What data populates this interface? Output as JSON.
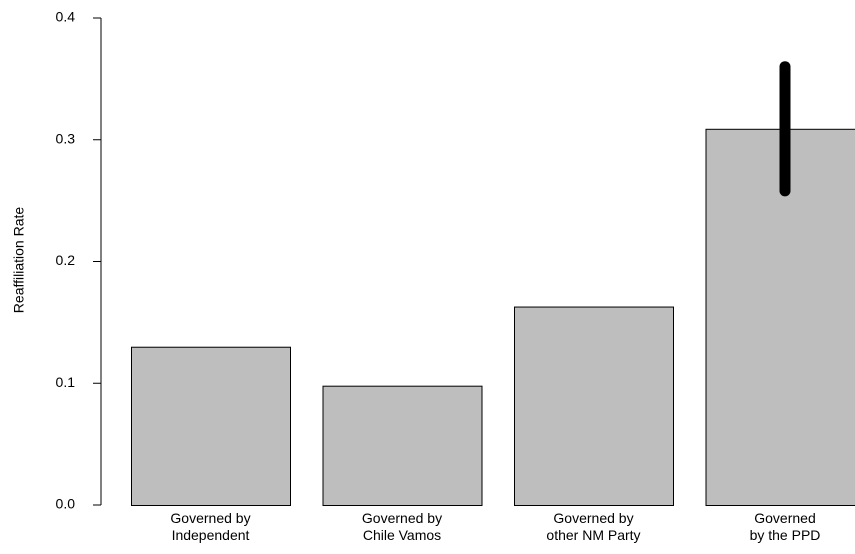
{
  "chart_data": {
    "type": "bar",
    "y_label": "Reaffiliation Rate",
    "categories": [
      "Governed by\nIndependent",
      "Governed by\nChile Vamos",
      "Governed by\nother NM Party",
      "Governed\nby the PPD"
    ],
    "values": [
      0.13,
      0.098,
      0.163,
      0.309
    ],
    "errors": [
      null,
      null,
      null,
      0.051
    ],
    "color": "#bebebe",
    "ylim": [
      0,
      0.4
    ],
    "yticks": [
      {
        "value": 0,
        "label": "0.0"
      },
      0.1,
      0.2,
      0.3,
      0.4
    ],
    "grid": false
  }
}
